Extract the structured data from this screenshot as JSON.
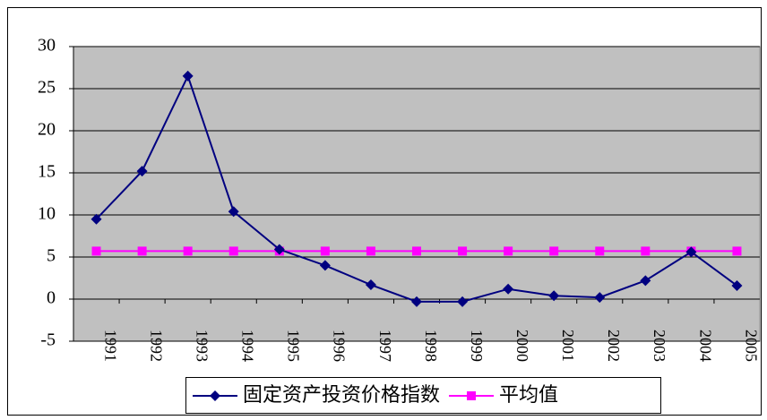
{
  "chart_data": {
    "type": "line",
    "categories": [
      "1991",
      "1992",
      "1993",
      "1994",
      "1995",
      "1996",
      "1997",
      "1998",
      "1999",
      "2000",
      "2001",
      "2002",
      "2003",
      "2004",
      "2005"
    ],
    "series": [
      {
        "name": "固定资产投资价格指数",
        "color": "#000080",
        "marker": "diamond",
        "values": [
          9.5,
          15.2,
          26.5,
          10.4,
          5.9,
          4.0,
          1.7,
          -0.3,
          -0.3,
          1.2,
          0.4,
          0.2,
          2.2,
          5.6,
          1.6
        ]
      },
      {
        "name": "平均值",
        "color": "#ff00ff",
        "marker": "square",
        "values": [
          5.7,
          5.7,
          5.7,
          5.7,
          5.7,
          5.7,
          5.7,
          5.7,
          5.7,
          5.7,
          5.7,
          5.7,
          5.7,
          5.7,
          5.7
        ]
      }
    ],
    "ylim": [
      -5,
      30
    ],
    "yticks": [
      -5,
      0,
      5,
      10,
      15,
      20,
      25,
      30
    ],
    "grid": true,
    "legend": "bottom"
  }
}
